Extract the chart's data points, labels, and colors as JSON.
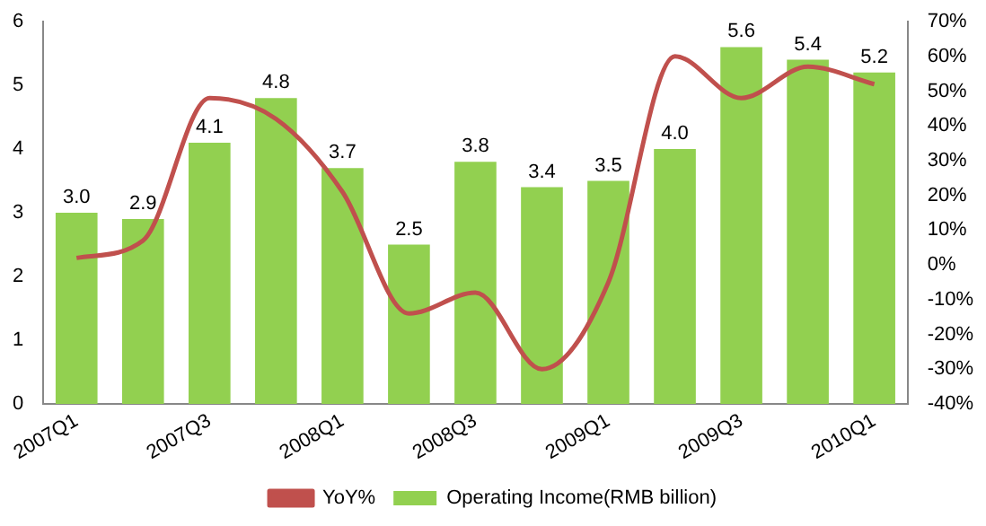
{
  "chart_data": {
    "type": "bar",
    "categories": [
      "2007Q1",
      null,
      "2007Q3",
      null,
      "2008Q1",
      null,
      "2008Q3",
      null,
      "2009Q1",
      null,
      "2009Q3",
      null,
      "2010Q1"
    ],
    "series": [
      {
        "name": "Operating Income(RMB billion)",
        "color": "#92d050",
        "values": [
          3.0,
          2.9,
          4.1,
          4.8,
          3.7,
          2.5,
          3.8,
          3.4,
          3.5,
          4.0,
          5.6,
          5.4,
          5.2
        ],
        "value_labels": [
          "3.0",
          "2.9",
          "4.1",
          "4.8",
          "3.7",
          "2.5",
          "3.8",
          "3.4",
          "3.5",
          "4.0",
          "5.6",
          "5.4",
          "5.2"
        ]
      },
      {
        "name": "YoY%",
        "type": "line",
        "axis": "y2",
        "color": "#c0504d",
        "values": [
          2,
          7,
          48,
          42,
          21,
          -14,
          -8,
          -30,
          -5,
          60,
          48,
          57,
          52
        ]
      }
    ],
    "ylim": [
      0,
      6
    ],
    "yticks": [
      0,
      1,
      2,
      3,
      4,
      5,
      6
    ],
    "y2lim": [
      -40,
      70
    ],
    "y2ticks": [
      {
        "value": -40,
        "label": "-40%"
      },
      {
        "value": -30,
        "label": "-30%"
      },
      {
        "value": -20,
        "label": "-20%"
      },
      {
        "value": -10,
        "label": "-10%"
      },
      {
        "value": 0,
        "label": "0%"
      },
      {
        "value": 10,
        "label": "10%"
      },
      {
        "value": 20,
        "label": "20%"
      },
      {
        "value": 30,
        "label": "30%"
      },
      {
        "value": 40,
        "label": "40%"
      },
      {
        "value": 50,
        "label": "50%"
      },
      {
        "value": 60,
        "label": "60%"
      },
      {
        "value": 70,
        "label": "70%"
      }
    ],
    "grid": false,
    "legend": "bottom",
    "marker": "none"
  }
}
